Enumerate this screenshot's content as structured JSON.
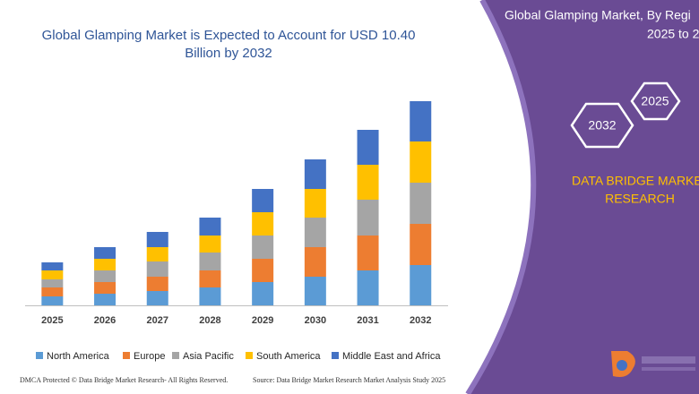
{
  "chart_data": {
    "type": "bar",
    "title": "Global Glamping Market is Expected to Account for USD 10.40",
    "title_line2": "Billion by 2032",
    "categories": [
      "2025",
      "2026",
      "2027",
      "2028",
      "2029",
      "2030",
      "2031",
      "2032"
    ],
    "stacked": true,
    "series": [
      {
        "name": "North America",
        "color": "#5b9bd5",
        "values": [
          10,
          13,
          16,
          20,
          26,
          32,
          39,
          45
        ]
      },
      {
        "name": "Europe",
        "color": "#ed7d31",
        "values": [
          10,
          13,
          16,
          19,
          26,
          33,
          39,
          46
        ]
      },
      {
        "name": "Asia Pacific",
        "color": "#a5a5a5",
        "values": [
          9,
          13,
          17,
          20,
          26,
          33,
          40,
          46
        ]
      },
      {
        "name": "South America",
        "color": "#ffc000",
        "values": [
          10,
          13,
          16,
          19,
          26,
          32,
          39,
          46
        ]
      },
      {
        "name": "Middle East and Africa",
        "color": "#4472c4",
        "values": [
          9,
          13,
          17,
          20,
          26,
          33,
          39,
          45
        ]
      }
    ],
    "legend": "bottom"
  },
  "panel": {
    "title_line1": "Global Glamping Market, By Regi",
    "title_line2": "2025 to 2",
    "hex_a": "2025",
    "hex_b": "2032",
    "brand_line1": "DATA BRIDGE MARKE",
    "brand_line2": "RESEARCH"
  },
  "footer": {
    "left": "DMCA Protected © Data Bridge Market Research- All Rights Reserved.",
    "right": "Source: Data Bridge Market Research Market Analysis Study 2025"
  }
}
